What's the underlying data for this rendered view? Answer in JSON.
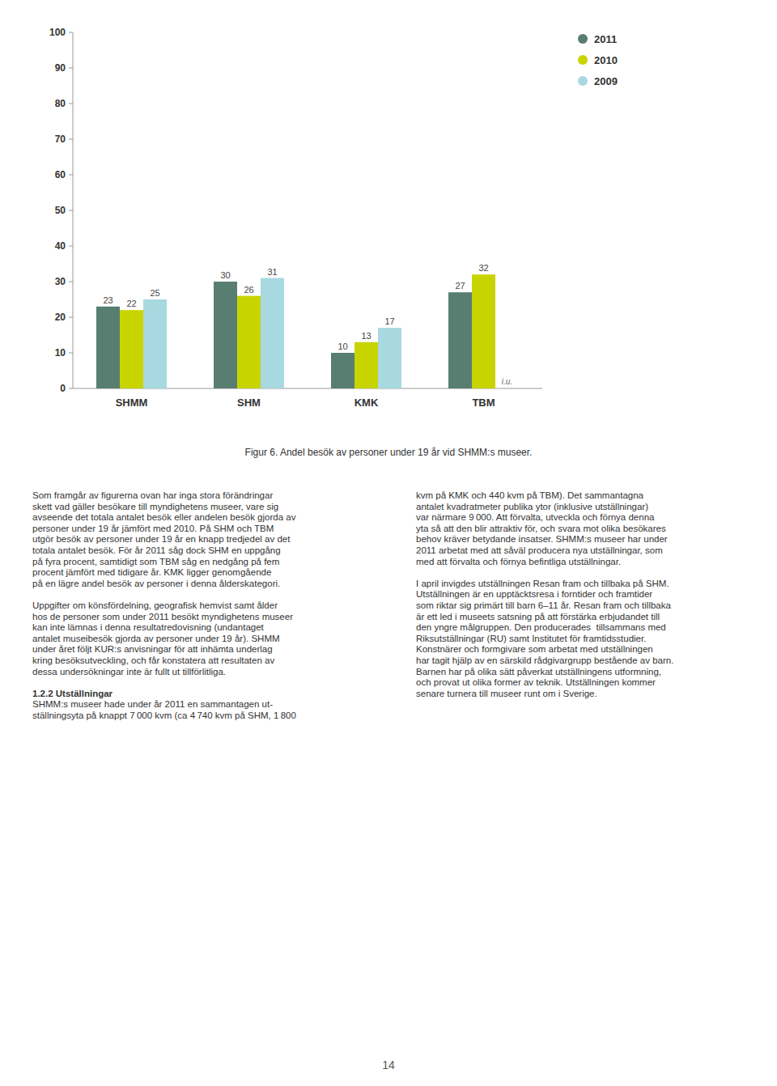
{
  "chart_data": {
    "type": "bar",
    "title": "Figur 6. Andel besök av personer under 19 år vid SHMM:s museer.",
    "categories": [
      "SHMM",
      "SHM",
      "KMK",
      "TBM"
    ],
    "series": [
      {
        "name": "2011",
        "color": "#587e72",
        "values": [
          23,
          30,
          10,
          27
        ]
      },
      {
        "name": "2010",
        "color": "#c8d400",
        "values": [
          22,
          26,
          13,
          32
        ]
      },
      {
        "name": "2009",
        "color": "#a8d8e0",
        "values": [
          25,
          31,
          17,
          null
        ]
      }
    ],
    "ylim": [
      0,
      100
    ],
    "yticks": [
      0,
      10,
      20,
      30,
      40,
      50,
      60,
      70,
      80,
      90,
      100
    ],
    "grid": false,
    "legend": "upper right",
    "data_labels": true,
    "annotations": [
      {
        "text": "i.u.",
        "series": "2009",
        "category": "TBM"
      }
    ]
  },
  "page": {
    "left_column": [
      {
        "lines": [
          "Som framgår av figurerna ovan har inga stora förändringar",
          "skett vad gäller besökare till myndighetens museer, vare sig",
          "avseende det totala antalet besök eller andelen besök gjorda av",
          "personer under 19 år jämfört med 2010. På SHM och TBM",
          "utgör besök av personer under 19 år en knapp tredjedel av det",
          "totala antalet besök. För år 2011 såg dock SHM en uppgång",
          "på fyra procent, samtidigt som TBM såg en nedgång på fem",
          "procent jämfört med tidigare år. KMK ligger genomgående",
          "på en lägre andel besök av personer i denna ålderskategori."
        ]
      },
      {
        "lines": [
          "Uppgifter om könsfördelning, geografisk hemvist samt ålder",
          "hos de personer som under 2011 besökt myndighetens museer",
          "kan inte lämnas i denna resultatredovisning (undantaget",
          "antalet museibesök gjorda av personer under 19 år). SHMM",
          "under året följt KUR:s anvisningar för att inhämta underlag",
          "kring besöksutveckling, och får konstatera att resultaten av",
          "dessa undersökningar inte är fullt ut tillförlitliga."
        ]
      },
      {
        "heading": "1.2.2 Utställningar",
        "lines": [
          "SHMM:s museer hade under år 2011 en sammantagen ut-",
          "ställningsyta på knappt 7 000 kvm (ca 4 740 kvm på SHM, 1 800"
        ]
      }
    ],
    "right_column": [
      {
        "lines": [
          "kvm på KMK och 440 kvm på TBM). Det sammantagna",
          "antalet kvadratmeter publika ytor (inklusive utställningar)",
          "var närmare 9 000. Att förvalta, utveckla och förnya denna",
          "yta så att den blir attraktiv för, och svara mot olika besökares",
          "behov kräver betydande insatser. SHMM:s museer har under",
          "2011 arbetat med att såväl producera nya utställningar, som",
          "med att förvalta och förnya befintliga utställningar."
        ]
      },
      {
        "lines": [
          "I april invigdes utställningen Resan fram och tillbaka på SHM.",
          "Utställningen är en upptäcktsresa i forntider och framtider",
          "som riktar sig primärt till barn 6–11 år. Resan fram och tillbaka",
          "är ett led i museets satsning på att förstärka erbjudandet till",
          "den yngre målgruppen. Den producerades  tillsammans med",
          "Riksutställningar (RU) samt Institutet för framtidsstudier.",
          "Konstnärer och formgivare som arbetat med utställningen",
          "har tagit hjälp av en särskild rådgivargrupp bestående av barn.",
          "Barnen har på olika sätt påverkat utställningens utformning,",
          "och provat ut olika former av teknik. Utställningen kommer",
          "senare turnera till museer runt om i Sverige."
        ]
      }
    ],
    "page_number": "14"
  }
}
